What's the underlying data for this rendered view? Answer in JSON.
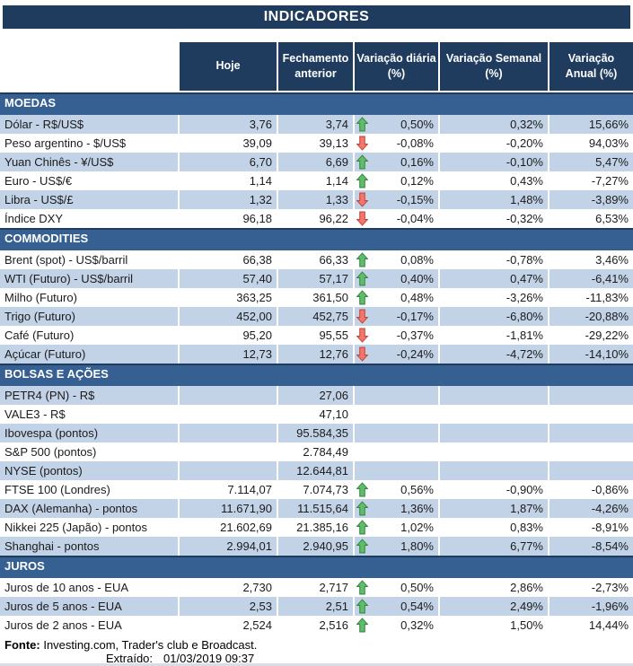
{
  "title": "INDICADORES",
  "columns": [
    "Hoje",
    "Fechamento\nanterior",
    "Variação diária\n(%)",
    "Variação Semanal\n(%)",
    "Variação\nAnual (%)"
  ],
  "sections": [
    {
      "name": "MOEDAS",
      "rows": [
        {
          "label": "Dólar - R$/US$",
          "hoje": "3,76",
          "fechamento": "3,74",
          "arrow": "up",
          "daily": "0,50%",
          "weekly": "0,32%",
          "annual": "15,66%"
        },
        {
          "label": "Peso argentino - $/US$",
          "hoje": "39,09",
          "fechamento": "39,13",
          "arrow": "down",
          "daily": "-0,08%",
          "weekly": "-0,20%",
          "annual": "94,03%"
        },
        {
          "label": "Yuan Chinês - ¥/US$",
          "hoje": "6,70",
          "fechamento": "6,69",
          "arrow": "up",
          "daily": "0,16%",
          "weekly": "-0,10%",
          "annual": "5,47%"
        },
        {
          "label": "Euro - US$/€",
          "hoje": "1,14",
          "fechamento": "1,14",
          "arrow": "up",
          "daily": "0,12%",
          "weekly": "0,43%",
          "annual": "-7,27%"
        },
        {
          "label": "Libra - US$/£",
          "hoje": "1,32",
          "fechamento": "1,33",
          "arrow": "down",
          "daily": "-0,15%",
          "weekly": "1,48%",
          "annual": "-3,89%"
        },
        {
          "label": "Índice DXY",
          "hoje": "96,18",
          "fechamento": "96,22",
          "arrow": "down",
          "daily": "-0,04%",
          "weekly": "-0,32%",
          "annual": "6,53%"
        }
      ]
    },
    {
      "name": "COMMODITIES",
      "rows": [
        {
          "label": "Brent (spot) - US$/barril",
          "hoje": "66,38",
          "fechamento": "66,33",
          "arrow": "up",
          "daily": "0,08%",
          "weekly": "-0,78%",
          "annual": "3,46%"
        },
        {
          "label": "WTI (Futuro) - US$/barril",
          "hoje": "57,40",
          "fechamento": "57,17",
          "arrow": "up",
          "daily": "0,40%",
          "weekly": "0,47%",
          "annual": "-6,41%"
        },
        {
          "label": "Milho (Futuro)",
          "hoje": "363,25",
          "fechamento": "361,50",
          "arrow": "up",
          "daily": "0,48%",
          "weekly": "-3,26%",
          "annual": "-11,83%"
        },
        {
          "label": "Trigo (Futuro)",
          "hoje": "452,00",
          "fechamento": "452,75",
          "arrow": "down",
          "daily": "-0,17%",
          "weekly": "-6,80%",
          "annual": "-20,88%"
        },
        {
          "label": "Café (Futuro)",
          "hoje": "95,20",
          "fechamento": "95,55",
          "arrow": "down",
          "daily": "-0,37%",
          "weekly": "-1,81%",
          "annual": "-29,22%"
        },
        {
          "label": "Açúcar (Futuro)",
          "hoje": "12,73",
          "fechamento": "12,76",
          "arrow": "down",
          "daily": "-0,24%",
          "weekly": "-4,72%",
          "annual": "-14,10%"
        }
      ]
    },
    {
      "name": "BOLSAS E AÇÕES",
      "rows": [
        {
          "label": "PETR4 (PN) - R$",
          "hoje": "",
          "fechamento": "27,06",
          "arrow": null,
          "daily": "",
          "weekly": "",
          "annual": ""
        },
        {
          "label": "VALE3 - R$",
          "hoje": "",
          "fechamento": "47,10",
          "arrow": null,
          "daily": "",
          "weekly": "",
          "annual": ""
        },
        {
          "label": "Ibovespa (pontos)",
          "hoje": "",
          "fechamento": "95.584,35",
          "arrow": null,
          "daily": "",
          "weekly": "",
          "annual": ""
        },
        {
          "label": "S&P 500 (pontos)",
          "hoje": "",
          "fechamento": "2.784,49",
          "arrow": null,
          "daily": "",
          "weekly": "",
          "annual": ""
        },
        {
          "label": "NYSE (pontos)",
          "hoje": "",
          "fechamento": "12.644,81",
          "arrow": null,
          "daily": "",
          "weekly": "",
          "annual": ""
        },
        {
          "label": "FTSE 100 (Londres)",
          "hoje": "7.114,07",
          "fechamento": "7.074,73",
          "arrow": "up",
          "daily": "0,56%",
          "weekly": "-0,90%",
          "annual": "-0,86%"
        },
        {
          "label": "DAX (Alemanha) - pontos",
          "hoje": "11.671,90",
          "fechamento": "11.515,64",
          "arrow": "up",
          "daily": "1,36%",
          "weekly": "1,87%",
          "annual": "-4,26%"
        },
        {
          "label": "Nikkei 225 (Japão) - pontos",
          "hoje": "21.602,69",
          "fechamento": "21.385,16",
          "arrow": "up",
          "daily": "1,02%",
          "weekly": "0,83%",
          "annual": "-8,91%"
        },
        {
          "label": "Shanghai - pontos",
          "hoje": "2.994,01",
          "fechamento": "2.940,95",
          "arrow": "up",
          "daily": "1,80%",
          "weekly": "6,77%",
          "annual": "-8,54%"
        }
      ]
    },
    {
      "name": "JUROS",
      "rows": [
        {
          "label": "Juros de 10 anos - EUA",
          "hoje": "2,730",
          "fechamento": "2,717",
          "arrow": "up",
          "daily": "0,50%",
          "weekly": "2,86%",
          "annual": "-2,73%"
        },
        {
          "label": "Juros de 5 anos - EUA",
          "hoje": "2,53",
          "fechamento": "2,51",
          "arrow": "up",
          "daily": "0,54%",
          "weekly": "2,49%",
          "annual": "-1,96%"
        },
        {
          "label": "Juros de 2 anos - EUA",
          "hoje": "2,524",
          "fechamento": "2,516",
          "arrow": "up",
          "daily": "0,32%",
          "weekly": "1,50%",
          "annual": "14,44%"
        }
      ]
    }
  ],
  "footer": {
    "fonte_label": "Fonte:",
    "fonte_text": " Investing.com, Trader's club e Broadcast.",
    "extraido_label": "Extraído:",
    "extraido_value": "01/03/2019 09:37"
  },
  "colors": {
    "navy": "#1F3B5E",
    "section_blue": "#366092",
    "stripe_blue": "#C3D3E7",
    "arrow_up_fill": "#5FBF69",
    "arrow_up_stroke": "#3A8546",
    "arrow_down_fill": "#F4766C",
    "arrow_down_stroke": "#C0483E"
  }
}
